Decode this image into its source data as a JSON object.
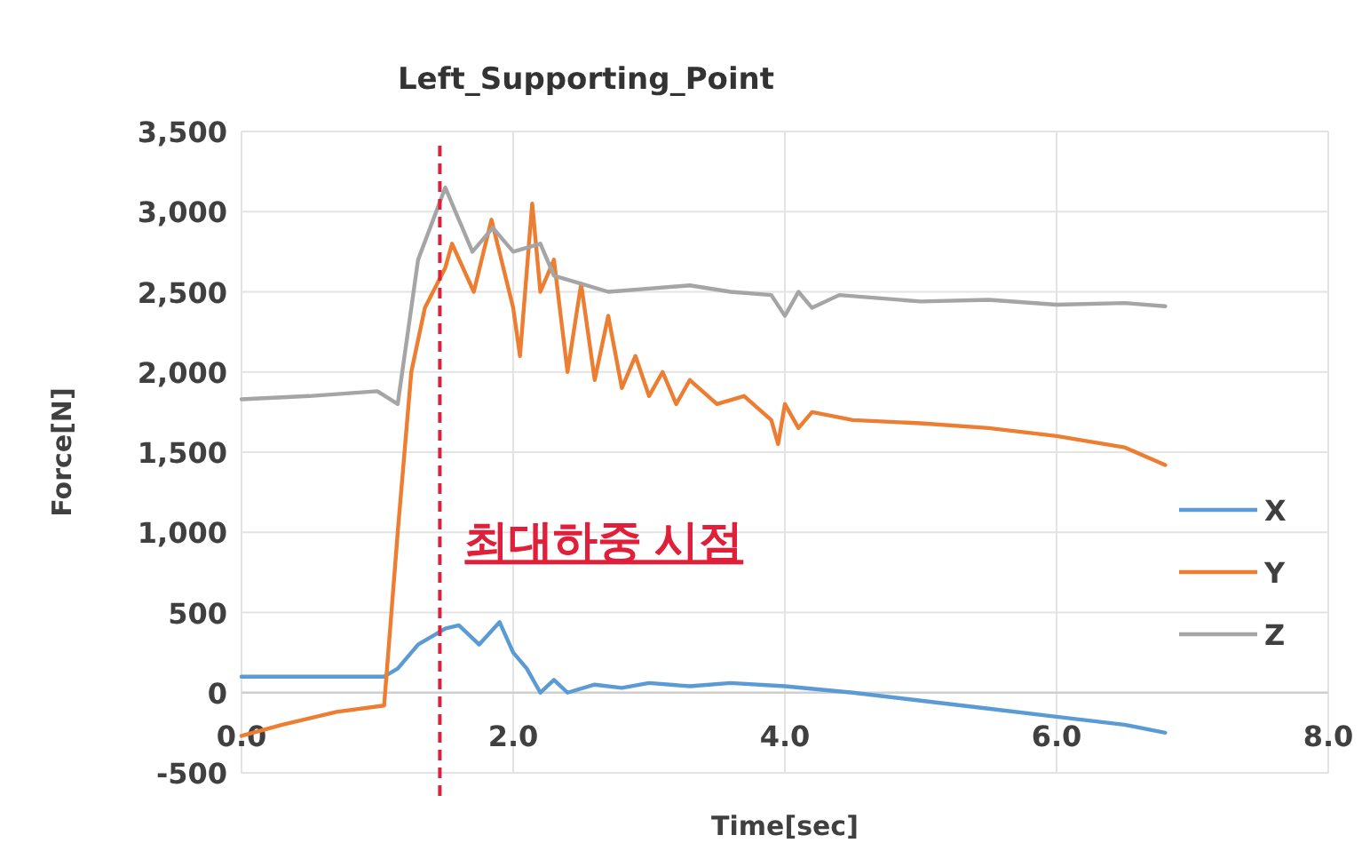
{
  "chart_data": {
    "type": "line",
    "title": "Left_Supporting_Point",
    "xlabel": "Time[sec]",
    "ylabel": "Force[N]",
    "xlim": [
      0,
      8
    ],
    "xticks": [
      {
        "value": 0,
        "label": "0.0"
      },
      {
        "value": 2,
        "label": "2.0"
      },
      {
        "value": 4,
        "label": "4.0"
      },
      {
        "value": 6,
        "label": "6.0"
      },
      {
        "value": 8,
        "label": "8.0"
      }
    ],
    "ylim": [
      -500,
      3500
    ],
    "yticks": [
      {
        "value": -500,
        "label": "-500"
      },
      0,
      500,
      {
        "value": 1000,
        "label": "1,000"
      },
      {
        "value": 1500,
        "label": "1,500"
      },
      {
        "value": 2000,
        "label": "2,000"
      },
      {
        "value": 2500,
        "label": "2,500"
      },
      {
        "value": 3000,
        "label": "3,000"
      },
      {
        "value": 3500,
        "label": "3,500"
      }
    ],
    "grid": true,
    "legend": "right",
    "marker": "none",
    "line_style": "solid",
    "ref_lines": [
      {
        "axis": "x",
        "value": 1.46,
        "label": "최대하중 시점",
        "color": "#e0203a",
        "line_style": "dashed"
      }
    ],
    "series": [
      {
        "name": "X",
        "color": "#5b9bd5",
        "x": [
          0,
          0.5,
          1.05,
          1.15,
          1.3,
          1.5,
          1.6,
          1.75,
          1.9,
          2.0,
          2.1,
          2.2,
          2.3,
          2.4,
          2.6,
          2.8,
          3.0,
          3.3,
          3.6,
          4.0,
          4.5,
          5.0,
          5.5,
          6.0,
          6.5,
          6.8
        ],
        "values": [
          100,
          100,
          100,
          150,
          300,
          400,
          420,
          300,
          440,
          250,
          150,
          0,
          80,
          0,
          50,
          30,
          60,
          40,
          60,
          40,
          0,
          -50,
          -100,
          -150,
          -200,
          -250
        ]
      },
      {
        "name": "Y",
        "color": "#ed7d31",
        "x": [
          0,
          0.3,
          0.7,
          1.05,
          1.15,
          1.25,
          1.35,
          1.5,
          1.55,
          1.71,
          1.84,
          2.0,
          2.05,
          2.14,
          2.2,
          2.3,
          2.4,
          2.5,
          2.6,
          2.7,
          2.8,
          2.9,
          3.0,
          3.1,
          3.2,
          3.3,
          3.5,
          3.7,
          3.9,
          3.95,
          4.0,
          4.1,
          4.2,
          4.5,
          5.0,
          5.5,
          6.0,
          6.5,
          6.8
        ],
        "values": [
          -270,
          -200,
          -120,
          -80,
          1000,
          2000,
          2400,
          2650,
          2800,
          2500,
          2950,
          2400,
          2100,
          3050,
          2500,
          2700,
          2000,
          2550,
          1950,
          2350,
          1900,
          2100,
          1850,
          2000,
          1800,
          1950,
          1800,
          1850,
          1700,
          1550,
          1800,
          1650,
          1750,
          1700,
          1680,
          1650,
          1600,
          1530,
          1420
        ]
      },
      {
        "name": "Z",
        "color": "#a5a5a5",
        "x": [
          0,
          0.5,
          1.0,
          1.15,
          1.3,
          1.5,
          1.7,
          1.85,
          2.0,
          2.2,
          2.3,
          2.5,
          2.7,
          3.0,
          3.3,
          3.6,
          3.9,
          4.0,
          4.1,
          4.2,
          4.4,
          5.0,
          5.5,
          6.0,
          6.5,
          6.8
        ],
        "values": [
          1830,
          1850,
          1880,
          1800,
          2700,
          3150,
          2750,
          2900,
          2750,
          2800,
          2600,
          2550,
          2500,
          2520,
          2540,
          2500,
          2480,
          2350,
          2500,
          2400,
          2480,
          2440,
          2450,
          2420,
          2430,
          2410
        ]
      }
    ]
  }
}
